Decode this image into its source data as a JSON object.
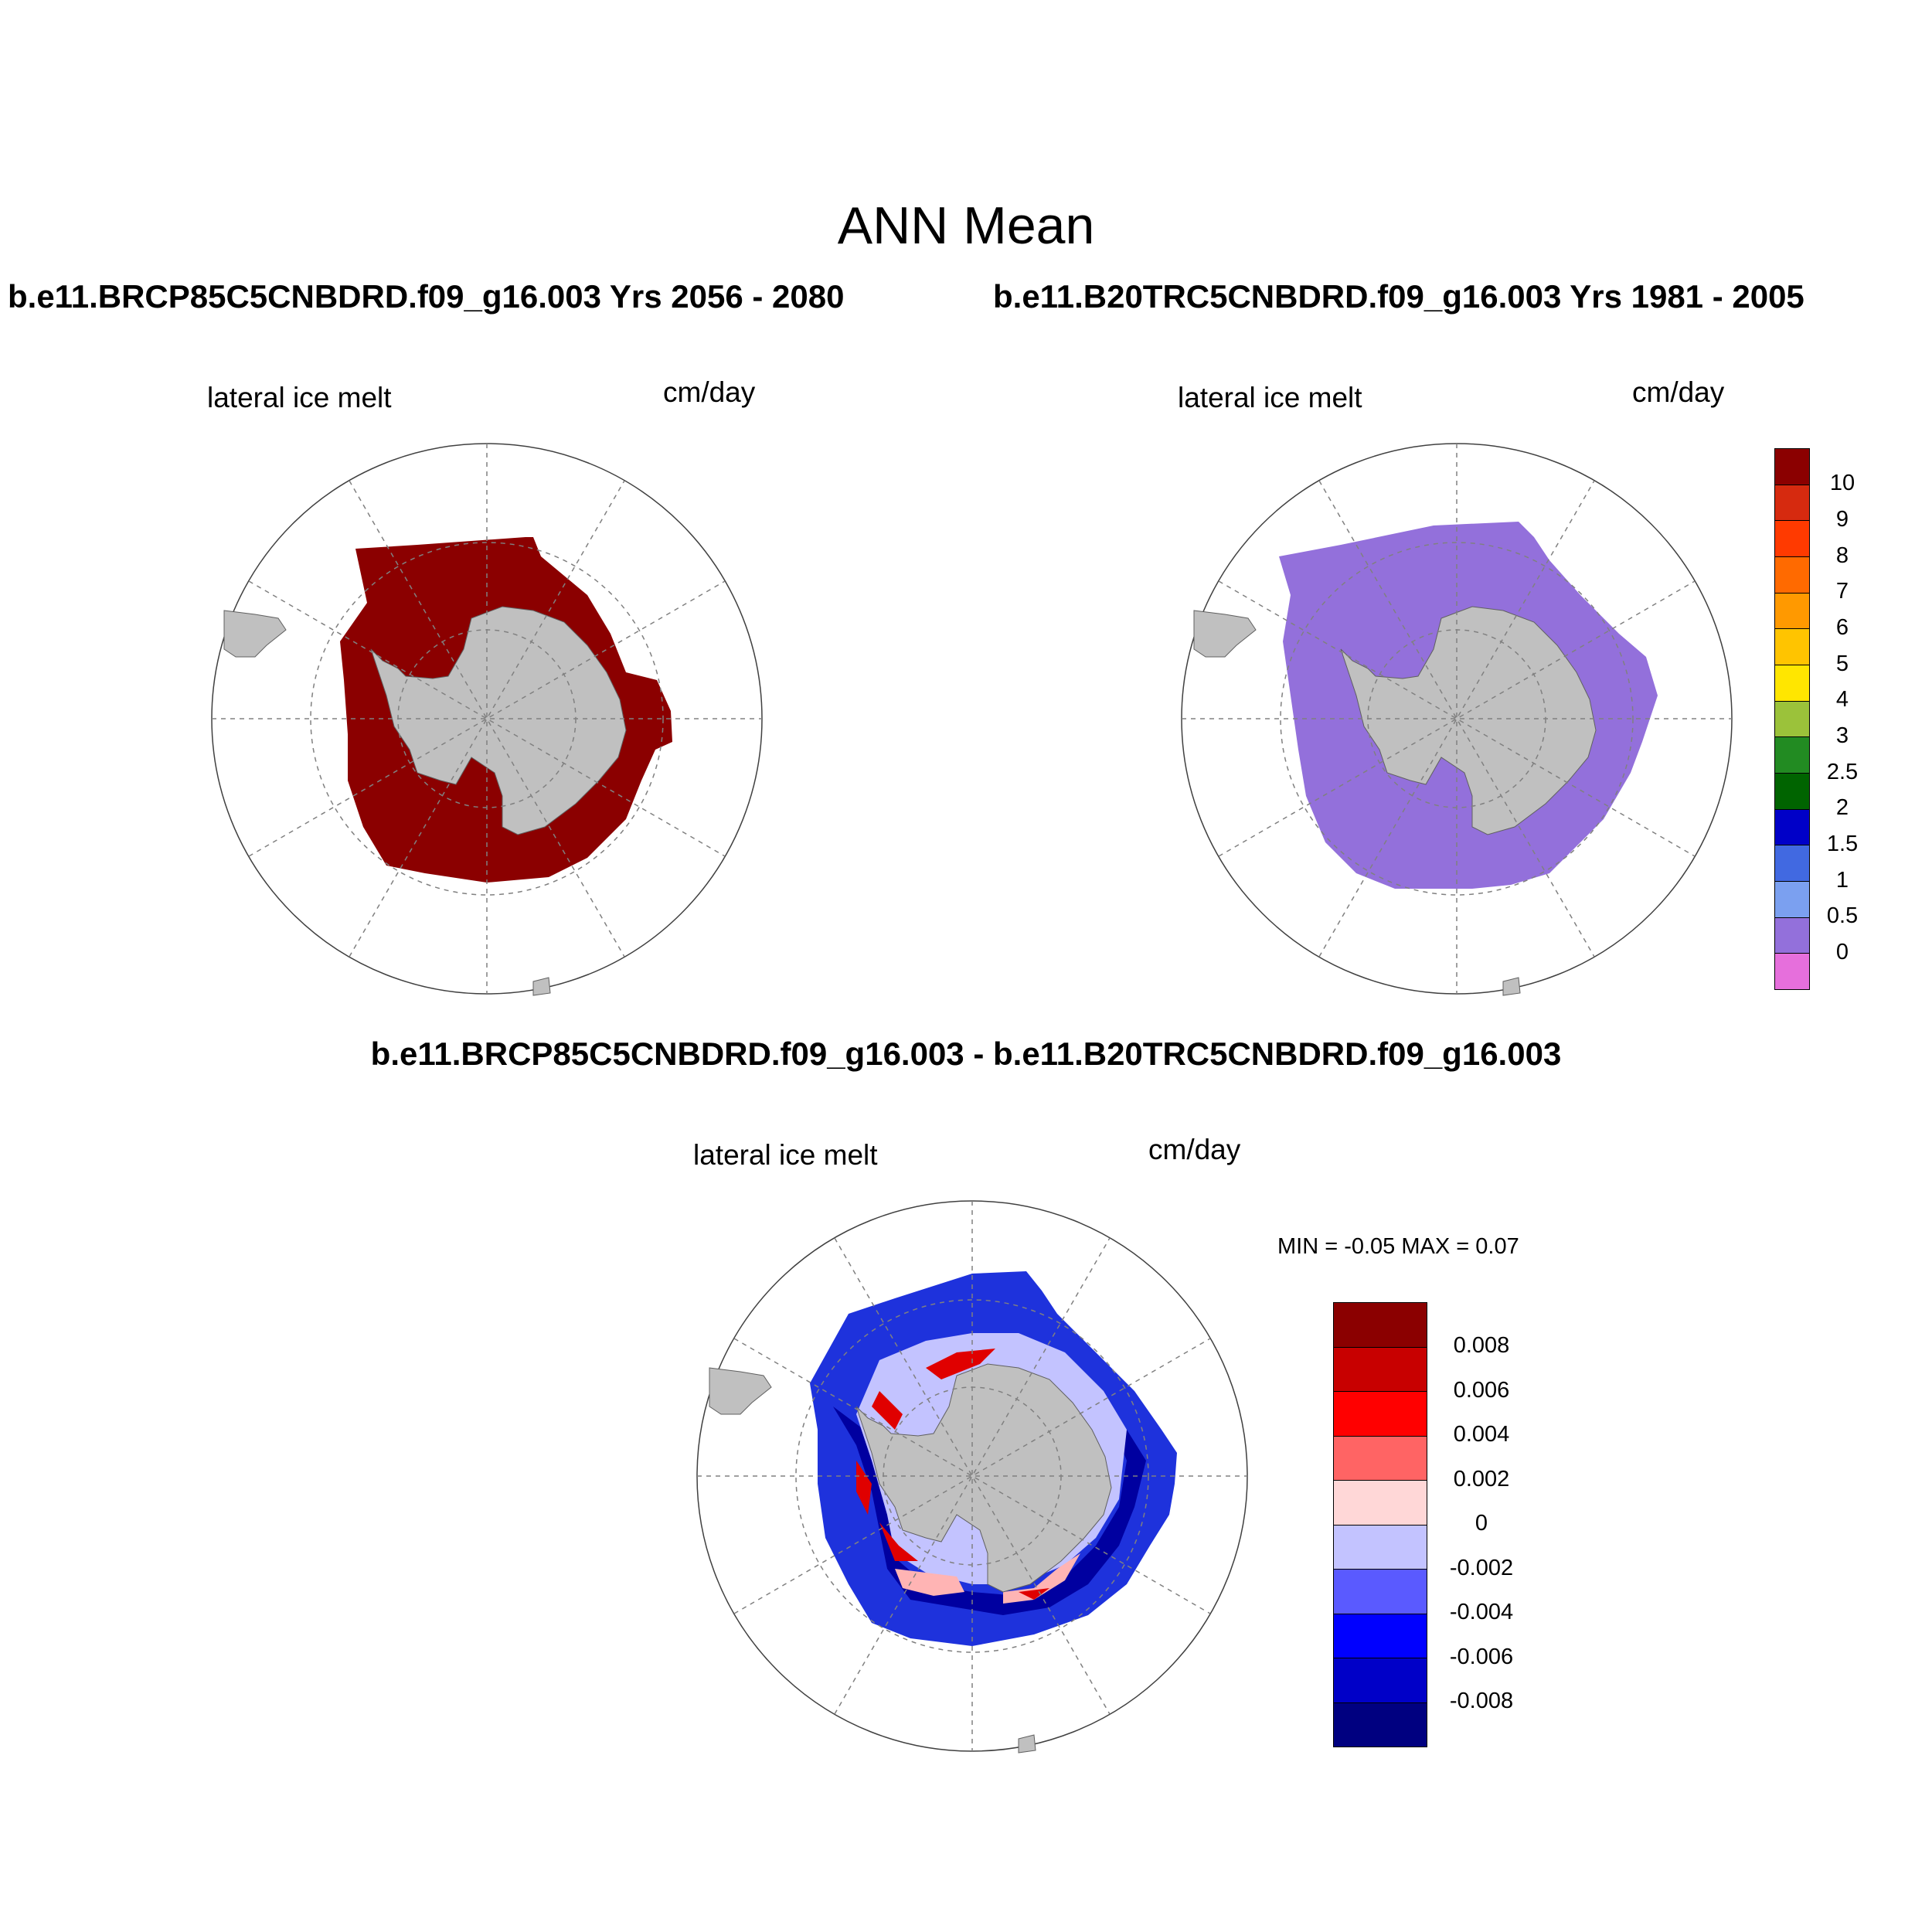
{
  "title": "ANN Mean",
  "panels": [
    {
      "case_title": "b.e11.BRCP85C5CNBDRD.f09_g16.003  Yrs 2056 - 2080",
      "variable": "lateral ice melt",
      "units": "cm/day",
      "field_color": "#8b0000"
    },
    {
      "case_title": "b.e11.B20TRC5CNBDRD.f09_g16.003  Yrs 1981 - 2005",
      "variable": "lateral ice melt",
      "units": "cm/day",
      "field_color": "#9370db"
    }
  ],
  "colorbar_main": {
    "labels": [
      "10",
      "9",
      "8",
      "7",
      "6",
      "5",
      "4",
      "3",
      "2.5",
      "2",
      "1.5",
      "1",
      "0.5",
      "0"
    ],
    "colors": [
      "#8b0000",
      "#d62a0f",
      "#ff3a00",
      "#ff6a00",
      "#ff9900",
      "#ffc400",
      "#ffe600",
      "#9bc23a",
      "#228b22",
      "#006400",
      "#0000c8",
      "#4169e1",
      "#7ba0f0",
      "#9370db",
      "#e66fdc"
    ]
  },
  "difference": {
    "title": "b.e11.BRCP85C5CNBDRD.f09_g16.003 - b.e11.B20TRC5CNBDRD.f09_g16.003",
    "variable": "lateral ice melt",
    "units": "cm/day",
    "min_max": "MIN =  -0.05 MAX =   0.07"
  },
  "colorbar_diff": {
    "labels": [
      "0.008",
      "0.006",
      "0.004",
      "0.002",
      "0",
      "-0.002",
      "-0.004",
      "-0.006",
      "-0.008"
    ],
    "colors": [
      "#8b0000",
      "#c80000",
      "#ff0000",
      "#ff6464",
      "#ffd7d7",
      "#c3c3ff",
      "#5a5aff",
      "#0000ff",
      "#0000c8",
      "#000080"
    ]
  },
  "map_colors": {
    "land": "#c0c0c0",
    "grid": "#808080",
    "diff_field": "#1e32dc",
    "diff_strong_blue": "#0000a0",
    "diff_light_blue": "#c3c3ff",
    "diff_red": "#e00000",
    "diff_light_red": "#ffb4b4"
  }
}
